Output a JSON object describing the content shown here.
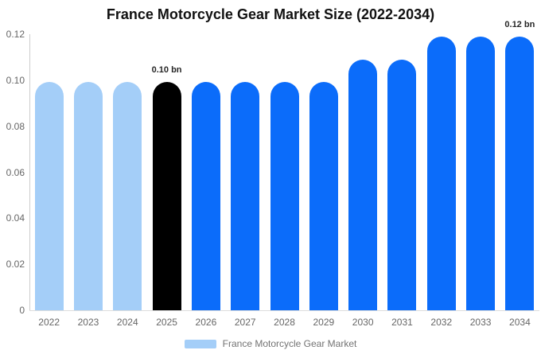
{
  "chart_data": {
    "type": "bar",
    "title": "France Motorcycle Gear Market Size (2022-2034)",
    "categories": [
      "2022",
      "2023",
      "2024",
      "2025",
      "2026",
      "2027",
      "2028",
      "2029",
      "2030",
      "2031",
      "2032",
      "2033",
      "2034"
    ],
    "values": [
      0.1,
      0.1,
      0.1,
      0.1,
      0.1,
      0.1,
      0.1,
      0.1,
      0.11,
      0.11,
      0.12,
      0.12,
      0.12
    ],
    "unit": "bn",
    "xlabel": "",
    "ylabel": "",
    "ylim": [
      0,
      0.12
    ],
    "yticks": [
      {
        "value": 0,
        "label": "0"
      },
      {
        "value": 0.02,
        "label": "0.02"
      },
      {
        "value": 0.04,
        "label": "0.04"
      },
      {
        "value": 0.06,
        "label": "0.06"
      },
      {
        "value": 0.08,
        "label": "0.08"
      },
      {
        "value": 0.1,
        "label": "0.10"
      },
      {
        "value": 0.12,
        "label": "0.12"
      }
    ],
    "grid": false,
    "legend_position": "bottom",
    "legend_label": "France Motorcycle Gear Market",
    "annotations": [
      {
        "category": "2025",
        "text": "0.10 bn"
      },
      {
        "category": "2034",
        "text": "0.12 bn"
      }
    ],
    "bar_colors": [
      "#a4cef8",
      "#a4cef8",
      "#a4cef8",
      "#000000",
      "#0b6cfa",
      "#0b6cfa",
      "#0b6cfa",
      "#0b6cfa",
      "#0b6cfa",
      "#0b6cfa",
      "#0b6cfa",
      "#0b6cfa",
      "#0b6cfa"
    ],
    "colors": {
      "historical_bars": "#a4cef8",
      "base_year_bar": "#000000",
      "forecast_bars": "#0b6cfa",
      "legend_swatch": "#a4cef8",
      "axis_line": "#cccccc",
      "tick_text": "#666666",
      "annotation_text": "#262626"
    }
  }
}
